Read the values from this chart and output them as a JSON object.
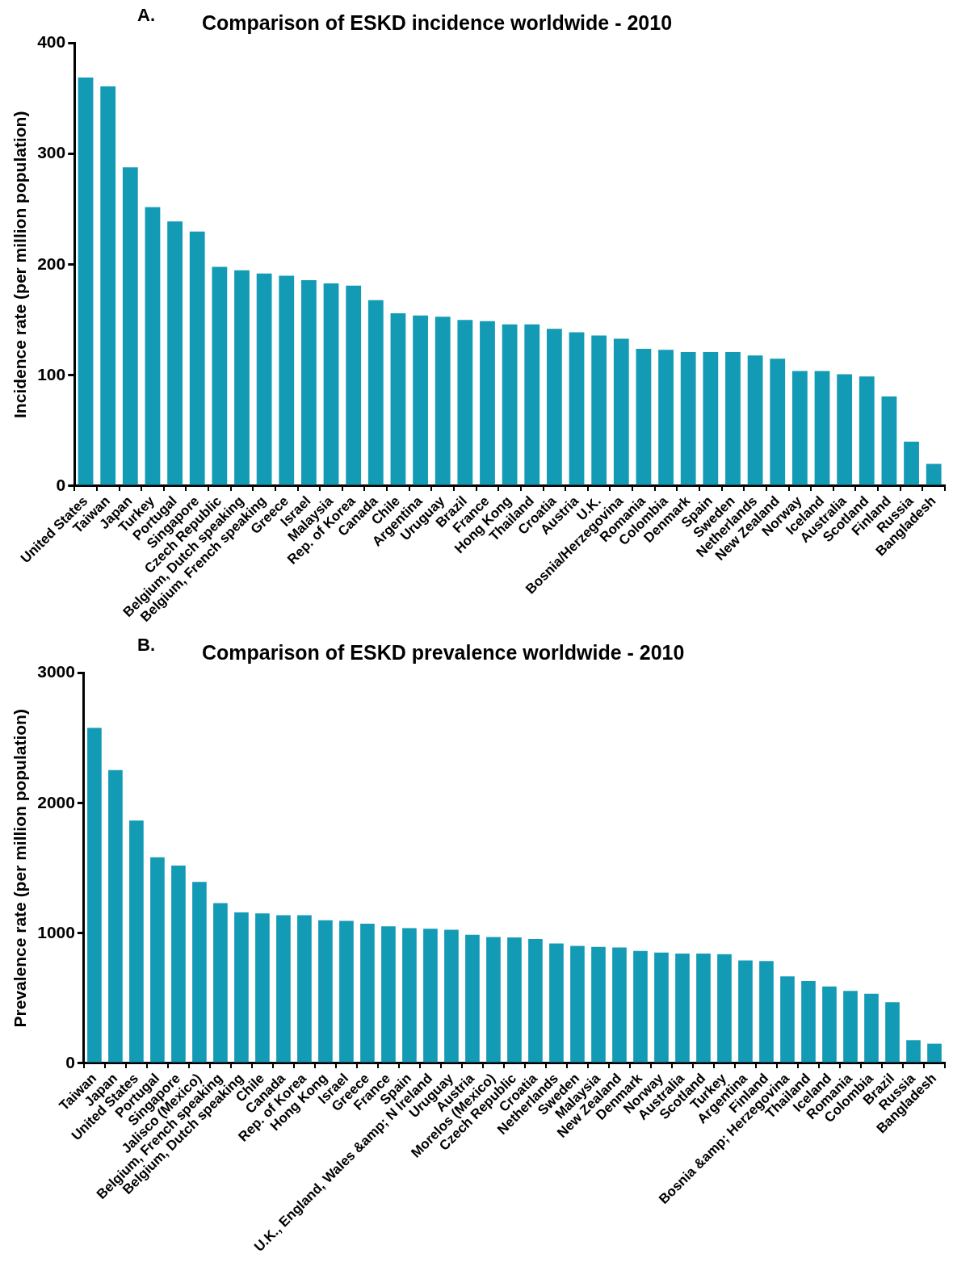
{
  "chart_data": [
    {
      "type": "bar",
      "title": "Comparison of ESKD incidence worldwide - 2010",
      "annotations": [
        "A."
      ],
      "ylabel": "Incidence rate (per million population)",
      "categories": [
        "United States",
        "Taiwan",
        "Japan",
        "Turkey",
        "Portugal",
        "Singapore",
        "Czech Republic",
        "Belgium, Dutch speaking",
        "Belgium, French speaking",
        "Greece",
        "Israel",
        "Malaysia",
        "Rep. of Korea",
        "Canada",
        "Chile",
        "Argentina",
        "Uruguay",
        "Brazil",
        "France",
        "Hong Kong",
        "Thailand",
        "Croatia",
        "Austria",
        "U.K.",
        "Bosnia/Herzegovina",
        "Romania",
        "Colombia",
        "Denmark",
        "Spain",
        "Sweden",
        "Netherlands",
        "New Zealand",
        "Norway",
        "Iceland",
        "Australia",
        "Scotland",
        "Finland",
        "Russia",
        "Bangladesh"
      ],
      "values": [
        369,
        361,
        288,
        252,
        239,
        230,
        198,
        195,
        192,
        190,
        186,
        183,
        181,
        168,
        156,
        154,
        153,
        150,
        149,
        146,
        146,
        142,
        139,
        136,
        133,
        124,
        123,
        121,
        121,
        121,
        118,
        115,
        104,
        104,
        101,
        99,
        81,
        40,
        20
      ],
      "color": "#139bb5",
      "ylim": [
        0,
        400
      ],
      "yticks": [
        0,
        100,
        200,
        300,
        400
      ],
      "legend": false
    },
    {
      "type": "bar",
      "title": "Comparison of ESKD prevalence worldwide - 2010",
      "annotations": [
        "B."
      ],
      "ylabel": "Prevalence rate (per million population)",
      "categories": [
        "Taiwan",
        "Japan",
        "United States",
        "Portugal",
        "Singapore",
        "Jalisco (Mexico)",
        "Belgium, French speaking",
        "Belgium, Dutch speaking",
        "Chile",
        "Canada",
        "Rep. of Korea",
        "Hong Kong",
        "Israel",
        "Greece",
        "France",
        "Spain",
        "U.K., England, Wales &amp; N Ireland",
        "Uruguay",
        "Austria",
        "Morelos (Mexico)",
        "Czech Republic",
        "Croatia",
        "Netherlands",
        "Sweden",
        "Malaysia",
        "New Zealand",
        "Denmark",
        "Norway",
        "Australia",
        "Scotland",
        "Turkey",
        "Argentina",
        "Finland",
        "Bosnia &amp; Herzegovina",
        "Thailand",
        "Iceland",
        "Romania",
        "Colombia",
        "Brazil",
        "Russia",
        "Bangladesh"
      ],
      "values": [
        2579,
        2255,
        1866,
        1584,
        1521,
        1394,
        1231,
        1161,
        1153,
        1139,
        1139,
        1100,
        1095,
        1073,
        1054,
        1039,
        1034,
        1027,
        988,
        971,
        968,
        956,
        922,
        903,
        895,
        890,
        864,
        852,
        844,
        844,
        839,
        791,
        786,
        669,
        633,
        591,
        557,
        535,
        470,
        178,
        151
      ],
      "color": "#139bb5",
      "ylim": [
        0,
        3000
      ],
      "yticks": [
        0,
        1000,
        2000,
        3000
      ],
      "legend": false
    }
  ]
}
